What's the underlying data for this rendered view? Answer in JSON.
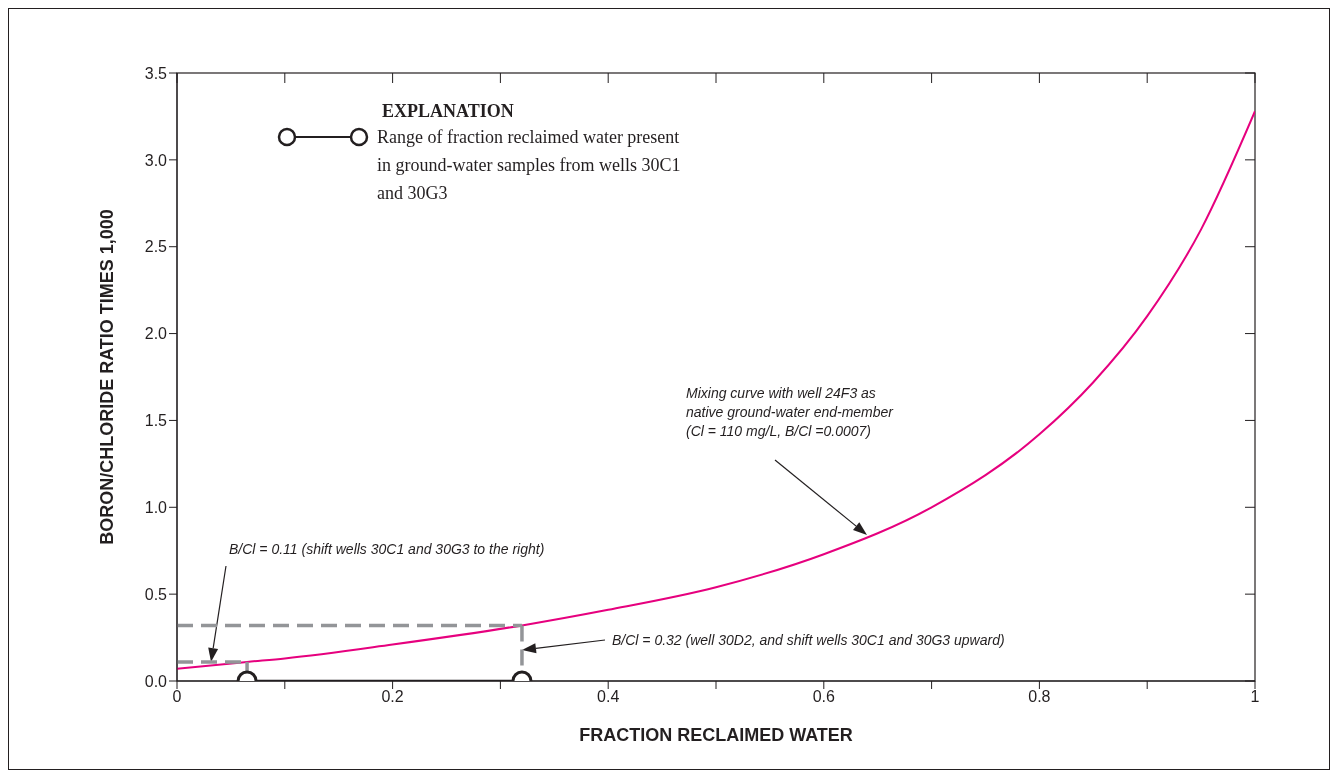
{
  "chart_data": {
    "type": "line",
    "xlabel": "FRACTION RECLAIMED WATER",
    "ylabel": "BORON/CHLORIDE RATIO TIMES 1,000",
    "legend_title": "EXPLANATION",
    "legend": "top left",
    "xlim": [
      0,
      1
    ],
    "xticks": [
      0,
      {
        "value": 0.1,
        "label": null
      },
      0.2,
      {
        "value": 0.3,
        "label": null
      },
      0.4,
      {
        "value": 0.5,
        "label": null
      },
      0.6,
      {
        "value": 0.7,
        "label": null
      },
      0.8,
      {
        "value": 0.9,
        "label": null
      },
      1
    ],
    "ylim": [
      0,
      3.5
    ],
    "yticks": [
      {
        "value": 0,
        "label": "0.0"
      },
      0.5,
      {
        "value": 1,
        "label": "1.0"
      },
      1.5,
      {
        "value": 2,
        "label": "2.0"
      },
      2.5,
      {
        "value": 3,
        "label": "3.0"
      },
      3.5
    ],
    "grid": false,
    "series": [
      {
        "color": "#e6007e",
        "marker": "none",
        "line_style": "solid",
        "x": [
          0,
          0.065,
          0.1,
          0.2,
          0.32,
          0.4,
          0.5,
          0.6,
          0.7,
          0.8,
          0.85,
          0.9,
          0.95,
          1
        ],
        "values": [
          0.07,
          0.11,
          0.13,
          0.21,
          0.32,
          0.41,
          0.54,
          0.73,
          1.0,
          1.42,
          1.72,
          2.1,
          2.6,
          3.28
        ]
      },
      {
        "color": "#939598",
        "marker": "none",
        "line_style": "dashed",
        "x": [
          0,
          0.065
        ],
        "values": [
          0.11,
          0.11
        ]
      },
      {
        "color": "#939598",
        "marker": "none",
        "line_style": "dashed",
        "x": [
          0.065,
          0.065
        ],
        "values": [
          0.11,
          0
        ]
      },
      {
        "color": "#939598",
        "marker": "none",
        "line_style": "dashed",
        "x": [
          0,
          0.32
        ],
        "values": [
          0.32,
          0.32
        ]
      },
      {
        "color": "#939598",
        "marker": "none",
        "line_style": "dashed",
        "x": [
          0.32,
          0.32
        ],
        "values": [
          0.32,
          0
        ]
      },
      {
        "name": "Range of fraction reclaimed water present in ground-water samples from wells 30C1 and 30G3",
        "color": "#231f20",
        "marker": "circle",
        "line_style": "solid",
        "x": [
          0.065,
          0.32
        ],
        "values": [
          0,
          0
        ]
      }
    ],
    "annotations": [
      "Mixing curve with well 24F3 as\nnative ground-water end-member\n(Cl = 110 mg/L, B/Cl =0.0007)",
      "B/Cl = 0.11 (shift wells 30C1 and 30G3 to the right)",
      "B/Cl = 0.32 (well 30D2, and shift wells 30C1 and 30G3 upward)"
    ]
  }
}
